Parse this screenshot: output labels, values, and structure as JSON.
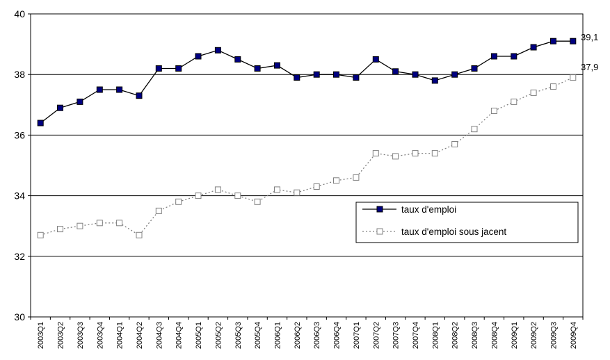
{
  "chart_data": {
    "type": "line",
    "title": "",
    "xlabel": "",
    "ylabel": "",
    "ylim": [
      30,
      40
    ],
    "yticks": [
      "30",
      "32",
      "34",
      "36",
      "38",
      "40"
    ],
    "grid": true,
    "legend_position": "right",
    "categories": [
      "2003Q1",
      "2003Q2",
      "2003Q3",
      "2003Q4",
      "2004Q1",
      "2004Q2",
      "2004Q3",
      "2004Q4",
      "2005Q1",
      "2005Q2",
      "2005Q3",
      "2005Q4",
      "2006Q1",
      "2006Q2",
      "2006Q3",
      "2006Q4",
      "2007Q1",
      "2007Q2",
      "2007Q3",
      "2007Q4",
      "2008Q1",
      "2008Q2",
      "2008Q3",
      "2008Q4",
      "2009Q1",
      "2009Q2",
      "2009Q3",
      "2009Q4"
    ],
    "series": [
      {
        "name": "taux d'emploi",
        "color": "#000000",
        "marker_fill": "#000080",
        "line_style": "solid",
        "values": [
          36.4,
          36.9,
          37.1,
          37.5,
          37.5,
          37.3,
          38.2,
          38.2,
          38.6,
          38.8,
          38.5,
          38.2,
          38.3,
          37.9,
          38.0,
          38.0,
          37.9,
          38.5,
          38.1,
          38.0,
          37.8,
          38.0,
          38.2,
          38.6,
          38.6,
          38.9,
          39.1,
          39.1
        ]
      },
      {
        "name": "taux d'emploi sous jacent",
        "color": "#808080",
        "marker_fill": "#ffffff",
        "line_style": "dotted",
        "values": [
          32.7,
          32.9,
          33.0,
          33.1,
          33.1,
          32.7,
          33.5,
          33.8,
          34.0,
          34.2,
          34.0,
          33.8,
          34.2,
          34.1,
          34.3,
          34.5,
          34.6,
          35.4,
          35.3,
          35.4,
          35.4,
          35.7,
          36.2,
          36.8,
          37.1,
          37.4,
          37.6,
          37.9
        ]
      }
    ],
    "annotations": [
      "39,1",
      "37,9"
    ]
  }
}
